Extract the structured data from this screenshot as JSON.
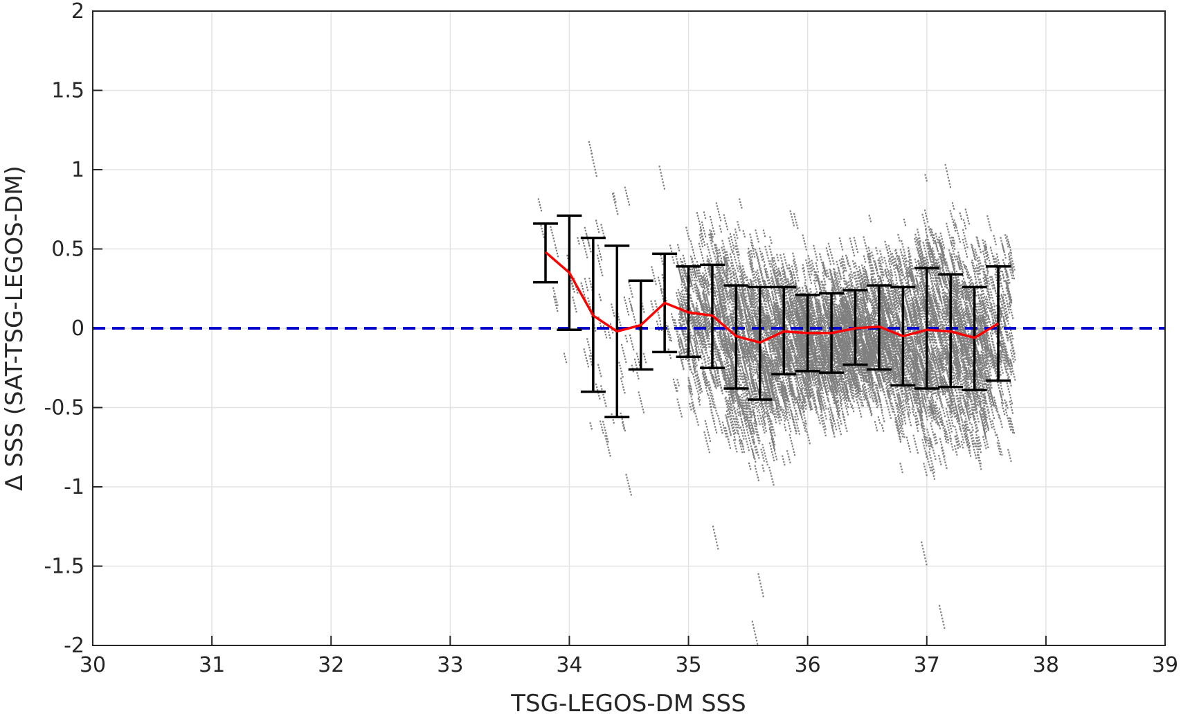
{
  "chart_data": {
    "type": "scatter",
    "title": "",
    "xlabel": "TSG-LEGOS-DM SSS",
    "ylabel": "Δ SSS (SAT-TSG-LEGOS-DM)",
    "xlim": [
      30,
      39
    ],
    "ylim": [
      -2,
      2
    ],
    "xticks": [
      "30",
      "31",
      "32",
      "33",
      "34",
      "35",
      "36",
      "37",
      "38",
      "39"
    ],
    "yticks": [
      "2",
      "1.5",
      "1",
      "0.5",
      "0",
      "-0.5",
      "-1",
      "-1.5",
      "-2"
    ],
    "grid": true,
    "reference_line": {
      "y": 0,
      "color": "#0000cc",
      "style": "dashed"
    },
    "scatter_color": "#808080",
    "scatter_density": [
      {
        "x": 33.8,
        "count": 6
      },
      {
        "x": 34.0,
        "count": 8
      },
      {
        "x": 34.2,
        "count": 25
      },
      {
        "x": 34.4,
        "count": 18
      },
      {
        "x": 34.6,
        "count": 12
      },
      {
        "x": 34.8,
        "count": 20
      },
      {
        "x": 35.0,
        "count": 160
      },
      {
        "x": 35.2,
        "count": 220
      },
      {
        "x": 35.4,
        "count": 300
      },
      {
        "x": 35.6,
        "count": 320
      },
      {
        "x": 35.8,
        "count": 330
      },
      {
        "x": 36.0,
        "count": 360
      },
      {
        "x": 36.2,
        "count": 380
      },
      {
        "x": 36.4,
        "count": 370
      },
      {
        "x": 36.6,
        "count": 350
      },
      {
        "x": 36.8,
        "count": 330
      },
      {
        "x": 37.0,
        "count": 360
      },
      {
        "x": 37.2,
        "count": 340
      },
      {
        "x": 37.4,
        "count": 300
      },
      {
        "x": 37.6,
        "count": 160
      }
    ],
    "outliers": [
      {
        "x": 34.18,
        "y": 1.1
      },
      {
        "x": 34.75,
        "y": 1.02
      },
      {
        "x": 35.53,
        "y": -1.85
      },
      {
        "x": 35.58,
        "y": -1.55
      },
      {
        "x": 35.2,
        "y": -1.25
      },
      {
        "x": 36.95,
        "y": -1.35
      },
      {
        "x": 37.1,
        "y": -1.75
      },
      {
        "x": 37.15,
        "y": 1.03
      }
    ],
    "mean_line": {
      "color": "#ff0000",
      "x": [
        33.8,
        34.0,
        34.2,
        34.4,
        34.6,
        34.8,
        35.0,
        35.2,
        35.4,
        35.6,
        35.8,
        36.0,
        36.2,
        36.4,
        36.6,
        36.8,
        37.0,
        37.2,
        37.4,
        37.6
      ],
      "y": [
        0.48,
        0.35,
        0.08,
        -0.02,
        0.02,
        0.16,
        0.1,
        0.08,
        -0.05,
        -0.09,
        -0.02,
        -0.03,
        -0.03,
        0.0,
        0.01,
        -0.05,
        -0.01,
        -0.02,
        -0.06,
        0.03
      ]
    },
    "error_bars": {
      "color": "#000000",
      "x": [
        33.8,
        34.0,
        34.2,
        34.4,
        34.6,
        34.8,
        35.0,
        35.2,
        35.4,
        35.6,
        35.8,
        36.0,
        36.2,
        36.4,
        36.6,
        36.8,
        37.0,
        37.2,
        37.4,
        37.6
      ],
      "low": [
        0.29,
        -0.01,
        -0.4,
        -0.56,
        -0.26,
        -0.15,
        -0.18,
        -0.25,
        -0.38,
        -0.45,
        -0.29,
        -0.27,
        -0.28,
        -0.23,
        -0.26,
        -0.36,
        -0.38,
        -0.37,
        -0.39,
        -0.33
      ],
      "high": [
        0.66,
        0.71,
        0.57,
        0.52,
        0.3,
        0.47,
        0.39,
        0.4,
        0.27,
        0.26,
        0.26,
        0.21,
        0.22,
        0.24,
        0.27,
        0.26,
        0.38,
        0.34,
        0.26,
        0.39
      ]
    }
  }
}
